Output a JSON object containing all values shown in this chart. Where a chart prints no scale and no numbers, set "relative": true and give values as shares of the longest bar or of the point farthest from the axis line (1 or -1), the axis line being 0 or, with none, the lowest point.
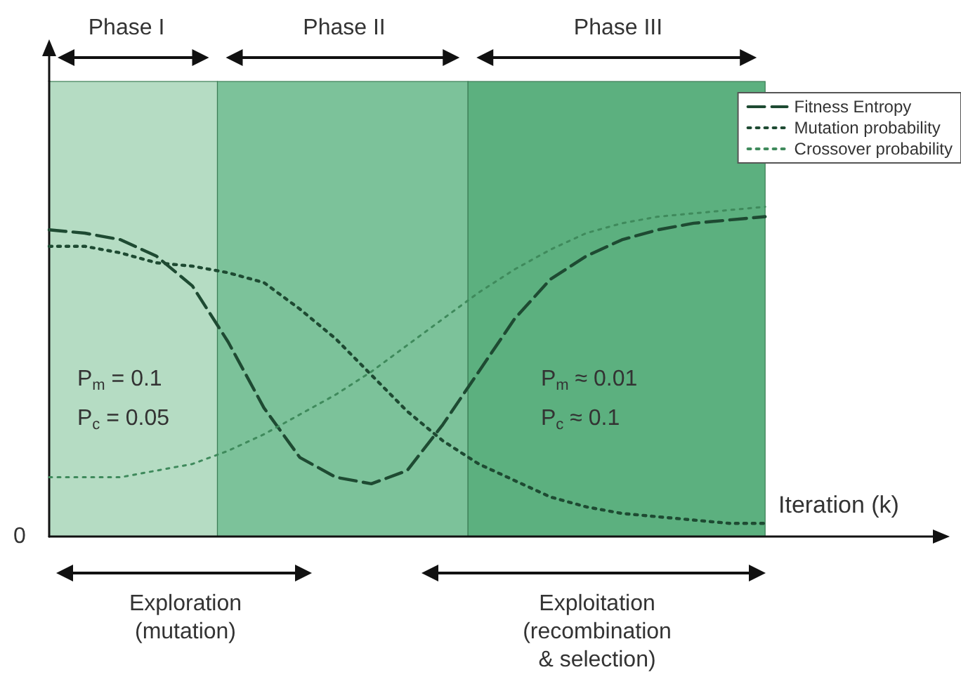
{
  "chart_data": {
    "type": "line",
    "relative": true,
    "xlabel": "Iteration (k)",
    "categories": [
      null,
      null,
      null,
      null,
      null,
      null,
      null,
      null,
      null,
      null,
      null,
      null,
      null,
      null,
      null,
      null,
      null,
      null,
      null,
      null,
      null,
      null,
      null,
      null,
      null,
      null
    ],
    "grid": false,
    "legend": "top right",
    "marker": "none",
    "series": [
      {
        "name": "Fitness Entropy",
        "color": "#1e4a32",
        "line_style": "dashed",
        "values": [
          0.93,
          0.92,
          0.9,
          0.85,
          0.76,
          0.59,
          0.39,
          0.24,
          0.18,
          0.16,
          0.2,
          0.34,
          0.5,
          0.66,
          0.78,
          0.85,
          0.9,
          0.93,
          0.95,
          0.96,
          0.97,
          null,
          null,
          null,
          null,
          null
        ]
      },
      {
        "name": "Mutation probability",
        "color": "#1e4a32",
        "line_style": "dotted",
        "values": [
          0.88,
          0.88,
          0.86,
          0.83,
          0.82,
          0.8,
          0.77,
          0.69,
          0.6,
          0.49,
          0.38,
          0.29,
          0.22,
          0.17,
          0.12,
          0.09,
          0.07,
          0.06,
          0.05,
          0.04,
          0.04,
          null,
          null,
          null,
          null,
          null
        ]
      },
      {
        "name": "Crossover probability",
        "color": "#3f8a5c",
        "line_style": "dotted",
        "values": [
          0.18,
          0.18,
          0.18,
          0.2,
          0.22,
          0.26,
          0.31,
          0.37,
          0.43,
          0.5,
          0.58,
          0.66,
          0.74,
          0.81,
          0.87,
          0.92,
          0.95,
          0.97,
          0.98,
          0.99,
          1,
          null,
          null,
          null,
          null,
          null
        ]
      }
    ],
    "annotations": [
      "Phase I",
      "Phase II",
      "Phase III",
      "P$_{m}$ = 0.1",
      "P$_{c}$ = 0.05",
      "P$_{m}$ ≈ 0.01",
      "P$_{c}$ ≈ 0.1",
      "0",
      "Exploration\n(mutation)",
      "Exploitation\n(recombination\n& selection)"
    ]
  }
}
